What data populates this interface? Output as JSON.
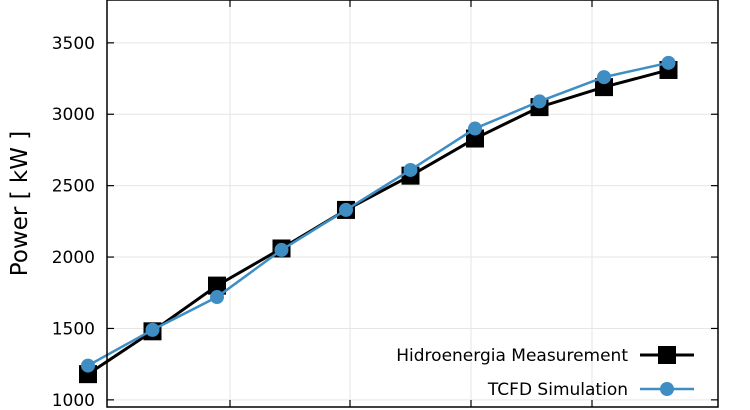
{
  "chart_data": {
    "type": "line",
    "ylabel": "Power [ kW ]",
    "xlabel": "",
    "ylim": [
      950,
      3800
    ],
    "yticks": [
      1000,
      1500,
      2000,
      2500,
      3000,
      3500
    ],
    "grid": true,
    "legend_position": "bottom-right",
    "x": [
      1,
      2,
      3,
      4,
      5,
      6,
      7,
      8,
      9,
      10
    ],
    "series": [
      {
        "name": "Hidroenergia Measurement",
        "color": "#000000",
        "marker": "square",
        "values": [
          1180,
          1480,
          1800,
          2060,
          2330,
          2570,
          2830,
          3050,
          3190,
          3310
        ]
      },
      {
        "name": "TCFD Simulation",
        "color": "#3e8ec4",
        "marker": "circle",
        "values": [
          1240,
          1490,
          1720,
          2050,
          2330,
          2610,
          2900,
          3090,
          3260,
          3360
        ]
      }
    ]
  }
}
